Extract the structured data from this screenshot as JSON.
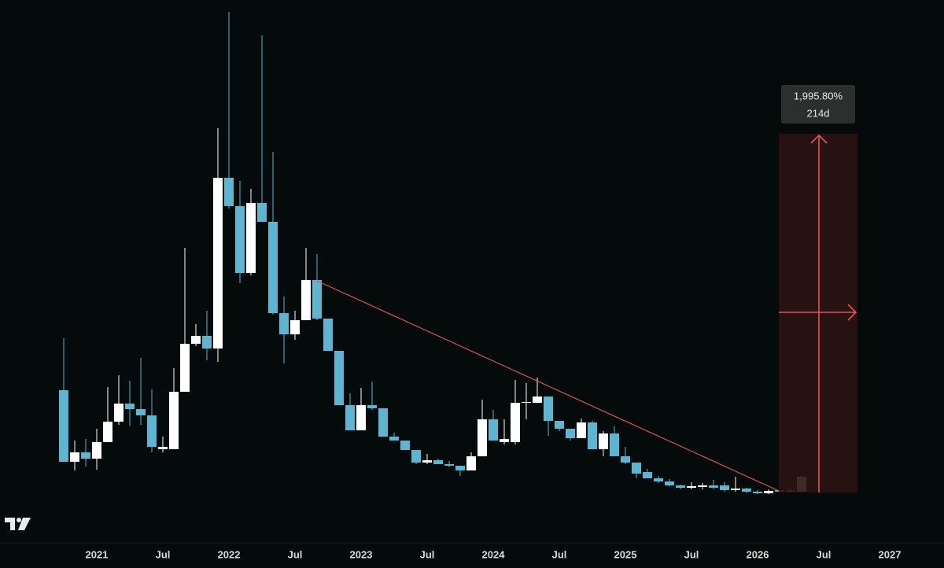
{
  "chart_data": {
    "type": "candlestick",
    "x": [
      "2020-10",
      "2020-11",
      "2020-12",
      "2021-01",
      "2021-02",
      "2021-03",
      "2021-04",
      "2021-05",
      "2021-06",
      "2021-07",
      "2021-08",
      "2021-09",
      "2021-10",
      "2021-11",
      "2021-12",
      "2022-01",
      "2022-02",
      "2022-03",
      "2022-04",
      "2022-05",
      "2022-06",
      "2022-07",
      "2022-08",
      "2022-09",
      "2022-10",
      "2022-11",
      "2022-12",
      "2023-01",
      "2023-02",
      "2023-03",
      "2023-04",
      "2023-05",
      "2023-06",
      "2023-07",
      "2023-08",
      "2023-09",
      "2023-10",
      "2023-11",
      "2023-12",
      "2024-01",
      "2024-02",
      "2024-03",
      "2024-04",
      "2024-05",
      "2024-06",
      "2024-07",
      "2024-08",
      "2024-09",
      "2024-10",
      "2024-11",
      "2024-12",
      "2025-01",
      "2025-02",
      "2025-03",
      "2025-04",
      "2025-05",
      "2025-06",
      "2025-07",
      "2025-08",
      "2025-09",
      "2025-10",
      "2025-11",
      "2025-12",
      "2026-01",
      "2026-02",
      "2026-03",
      "2026-04",
      "2026-05"
    ],
    "open": [
      204,
      113,
      125,
      117,
      138,
      164,
      187,
      180,
      172,
      129,
      129,
      202,
      263,
      273,
      257,
      474,
      438,
      353,
      442,
      418,
      302,
      275,
      293,
      344,
      295,
      254,
      185,
      153,
      185,
      181,
      145,
      140,
      128,
      112,
      115,
      110,
      108,
      102,
      120,
      167,
      138,
      138,
      188,
      188,
      196,
      165,
      155,
      143,
      163,
      129,
      149,
      120,
      112,
      100,
      92,
      88,
      83,
      80,
      81,
      83,
      83,
      77,
      79,
      75,
      73,
      77,
      77,
      75
    ],
    "high": [
      270,
      140,
      142,
      155,
      208,
      223,
      216,
      245,
      205,
      145,
      232,
      385,
      288,
      305,
      537,
      685,
      470,
      460,
      655,
      507,
      323,
      305,
      385,
      377,
      295,
      254,
      200,
      207,
      215,
      181,
      150,
      140,
      128,
      123,
      117,
      114,
      108,
      125,
      192,
      179,
      167,
      217,
      213,
      220,
      196,
      165,
      155,
      168,
      165,
      152,
      158,
      132,
      112,
      104,
      95,
      91,
      84,
      87,
      86,
      90,
      87,
      94,
      80,
      77,
      78,
      78,
      79,
      96
    ],
    "low": [
      113,
      102,
      107,
      103,
      138,
      160,
      159,
      160,
      125,
      125,
      129,
      202,
      260,
      242,
      240,
      435,
      340,
      350,
      418,
      300,
      238,
      268,
      293,
      293,
      254,
      185,
      153,
      153,
      179,
      145,
      140,
      128,
      110,
      110,
      110,
      106,
      95,
      102,
      120,
      140,
      135,
      135,
      167,
      188,
      146,
      152,
      140,
      143,
      129,
      120,
      120,
      110,
      92,
      92,
      86,
      82,
      78,
      78,
      78,
      78,
      75,
      75,
      73,
      72,
      72,
      74,
      74,
      74
    ],
    "close": [
      113,
      125,
      117,
      138,
      164,
      187,
      180,
      172,
      132,
      132,
      202,
      263,
      273,
      257,
      474,
      438,
      353,
      442,
      418,
      302,
      275,
      293,
      344,
      295,
      254,
      185,
      153,
      185,
      181,
      145,
      140,
      128,
      112,
      115,
      110,
      108,
      102,
      120,
      167,
      140,
      142,
      188,
      189,
      196,
      165,
      155,
      143,
      163,
      129,
      149,
      120,
      112,
      98,
      92,
      88,
      83,
      80,
      82,
      83,
      80,
      77,
      79,
      75,
      73,
      76,
      75,
      75,
      94
    ],
    "up_color": "#ffffff",
    "down_color": "#5cb6d2",
    "ylim": [
      0,
      700
    ],
    "xticks": [
      {
        "value": "2021-01",
        "label": "2021"
      },
      {
        "value": "2021-07",
        "label": "Jul"
      },
      {
        "value": "2022-01",
        "label": "2022"
      },
      {
        "value": "2022-07",
        "label": "Jul"
      },
      {
        "value": "2023-01",
        "label": "2023"
      },
      {
        "value": "2023-07",
        "label": "Jul"
      },
      {
        "value": "2024-01",
        "label": "2024"
      },
      {
        "value": "2024-07",
        "label": "Jul"
      },
      {
        "value": "2025-01",
        "label": "2025"
      },
      {
        "value": "2025-07",
        "label": "Jul"
      },
      {
        "value": "2026-01",
        "label": "2026"
      },
      {
        "value": "2026-07",
        "label": "Jul"
      },
      {
        "value": "2027-01",
        "label": "2027"
      }
    ],
    "measure": {
      "percent": "1,995.80%",
      "days": "214d"
    }
  }
}
